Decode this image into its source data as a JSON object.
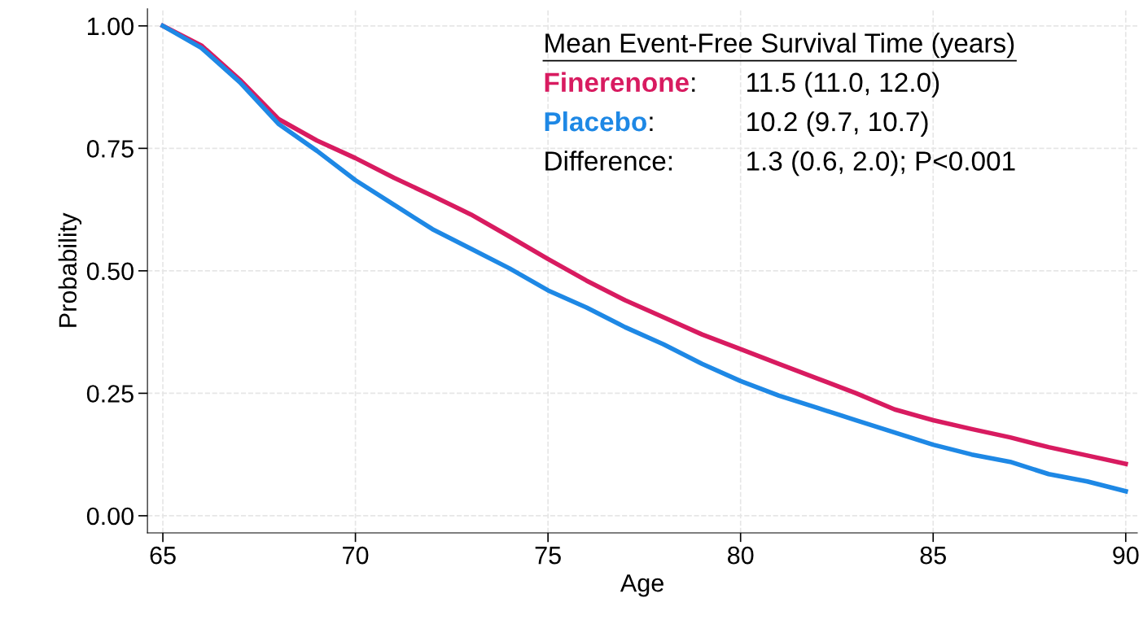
{
  "chart_data": {
    "type": "line",
    "xlabel": "Age",
    "ylabel": "Probability",
    "x": [
      65,
      66,
      67,
      68,
      69,
      70,
      71,
      72,
      73,
      74,
      75,
      76,
      77,
      78,
      79,
      80,
      81,
      82,
      83,
      84,
      85,
      86,
      87,
      88,
      89,
      90
    ],
    "series": [
      {
        "name": "Finerenone",
        "color": "#d81b60",
        "values": [
          1.0,
          0.96,
          0.89,
          0.81,
          0.766,
          0.73,
          0.69,
          0.653,
          0.615,
          0.57,
          0.524,
          0.48,
          0.44,
          0.405,
          0.37,
          0.34,
          0.31,
          0.28,
          0.25,
          0.217,
          0.195,
          0.177,
          0.16,
          0.14,
          0.123,
          0.106
        ]
      },
      {
        "name": "Placebo",
        "color": "#1e88e5",
        "values": [
          1.0,
          0.955,
          0.885,
          0.8,
          0.745,
          0.685,
          0.635,
          0.585,
          0.545,
          0.505,
          0.46,
          0.425,
          0.385,
          0.35,
          0.31,
          0.275,
          0.245,
          0.22,
          0.195,
          0.17,
          0.145,
          0.125,
          0.11,
          0.085,
          0.07,
          0.05
        ]
      }
    ],
    "xlim": [
      64.6,
      90.3
    ],
    "ylim": [
      -0.035,
      1.035
    ],
    "xticks": [
      65,
      70,
      75,
      80,
      85,
      90
    ],
    "yticks": [
      {
        "value": 0,
        "label": "0.00"
      },
      {
        "value": 0.25,
        "label": "0.25"
      },
      {
        "value": 0.5,
        "label": "0.50"
      },
      {
        "value": 0.75,
        "label": "0.75"
      },
      {
        "value": 1,
        "label": "1.00"
      }
    ],
    "grid": true,
    "line_style": "solid",
    "legend": false,
    "annotations": [
      "Mean Event-Free Survival Time (years)",
      ":",
      "11.5 (11.0, 12.0)",
      ":",
      "10.2 (9.7, 10.7)",
      "Difference:",
      "1.3 (0.6, 2.0); P<0.001"
    ]
  }
}
